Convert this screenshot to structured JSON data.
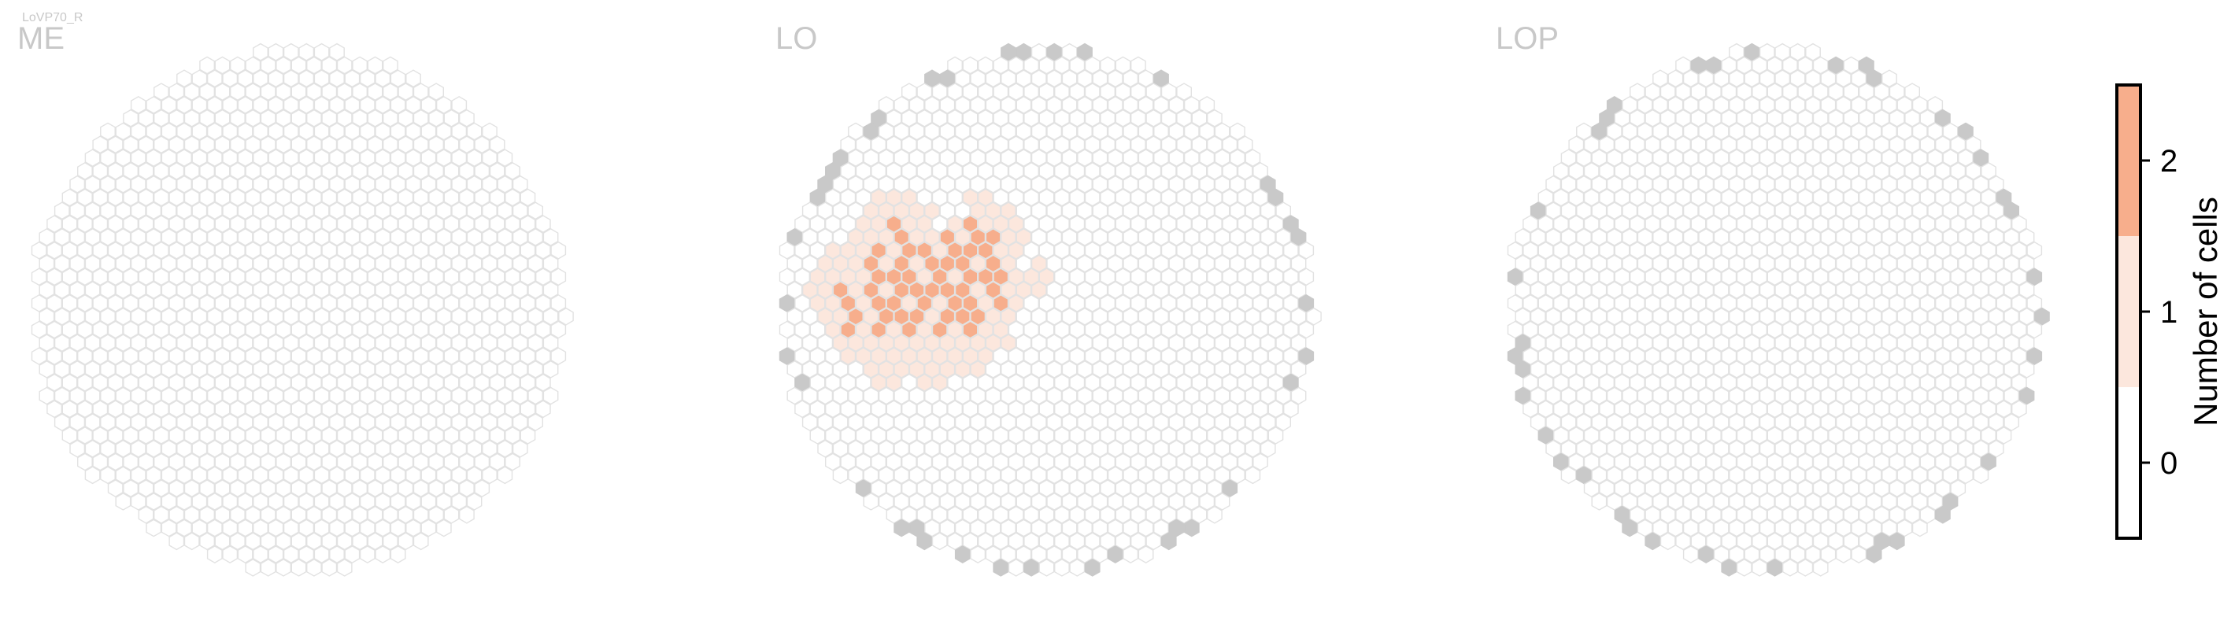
{
  "cell_type_label": "LoVP70_R",
  "chart_data": {
    "type": "heatmap",
    "description_kind": "hexagonal column maps of the right optic lobe",
    "panels": [
      {
        "title": "ME",
        "counts_by_row": []
      },
      {
        "title": "LO",
        "counts_by_row": [
          {
            "row": 6,
            "cols": [
              [
                6,
                1
              ],
              [
                7,
                1
              ],
              [
                8,
                1
              ],
              [
                12,
                1
              ],
              [
                13,
                1
              ]
            ]
          },
          {
            "row": 7,
            "cols": [
              [
                5,
                1
              ],
              [
                6,
                1
              ],
              [
                7,
                1
              ],
              [
                8,
                1
              ],
              [
                9,
                1
              ],
              [
                12,
                1
              ],
              [
                13,
                1
              ],
              [
                14,
                1
              ]
            ]
          },
          {
            "row": 8,
            "cols": [
              [
                5,
                1
              ],
              [
                6,
                1
              ],
              [
                7,
                2
              ],
              [
                8,
                1
              ],
              [
                9,
                1
              ],
              [
                11,
                1
              ],
              [
                12,
                2
              ],
              [
                13,
                1
              ],
              [
                14,
                1
              ],
              [
                15,
                1
              ]
            ]
          },
          {
            "row": 9,
            "cols": [
              [
                4,
                1
              ],
              [
                5,
                1
              ],
              [
                6,
                1
              ],
              [
                7,
                2
              ],
              [
                8,
                1
              ],
              [
                9,
                1
              ],
              [
                10,
                2
              ],
              [
                11,
                1
              ],
              [
                12,
                2
              ],
              [
                13,
                2
              ],
              [
                14,
                1
              ],
              [
                15,
                1
              ]
            ]
          },
          {
            "row": 10,
            "cols": [
              [
                3,
                1
              ],
              [
                4,
                1
              ],
              [
                5,
                1
              ],
              [
                6,
                2
              ],
              [
                7,
                1
              ],
              [
                8,
                2
              ],
              [
                9,
                2
              ],
              [
                10,
                1
              ],
              [
                11,
                2
              ],
              [
                12,
                2
              ],
              [
                13,
                2
              ],
              [
                14,
                1
              ],
              [
                15,
                1
              ]
            ]
          },
          {
            "row": 11,
            "cols": [
              [
                2,
                1
              ],
              [
                3,
                1
              ],
              [
                4,
                1
              ],
              [
                5,
                2
              ],
              [
                6,
                1
              ],
              [
                7,
                2
              ],
              [
                8,
                1
              ],
              [
                9,
                2
              ],
              [
                10,
                2
              ],
              [
                11,
                2
              ],
              [
                12,
                1
              ],
              [
                13,
                2
              ],
              [
                14,
                1
              ],
              [
                16,
                1
              ]
            ]
          },
          {
            "row": 12,
            "cols": [
              [
                2,
                1
              ],
              [
                3,
                1
              ],
              [
                4,
                1
              ],
              [
                5,
                1
              ],
              [
                6,
                2
              ],
              [
                7,
                2
              ],
              [
                8,
                2
              ],
              [
                9,
                1
              ],
              [
                10,
                2
              ],
              [
                11,
                1
              ],
              [
                12,
                2
              ],
              [
                13,
                2
              ],
              [
                14,
                2
              ],
              [
                15,
                1
              ],
              [
                16,
                1
              ],
              [
                17,
                1
              ]
            ]
          },
          {
            "row": 13,
            "cols": [
              [
                1,
                1
              ],
              [
                2,
                1
              ],
              [
                3,
                2
              ],
              [
                4,
                1
              ],
              [
                5,
                2
              ],
              [
                6,
                1
              ],
              [
                7,
                2
              ],
              [
                8,
                2
              ],
              [
                9,
                2
              ],
              [
                10,
                2
              ],
              [
                11,
                2
              ],
              [
                12,
                1
              ],
              [
                13,
                2
              ],
              [
                14,
                1
              ],
              [
                15,
                1
              ],
              [
                16,
                1
              ]
            ]
          },
          {
            "row": 14,
            "cols": [
              [
                2,
                1
              ],
              [
                3,
                1
              ],
              [
                4,
                2
              ],
              [
                5,
                1
              ],
              [
                6,
                2
              ],
              [
                7,
                2
              ],
              [
                8,
                1
              ],
              [
                9,
                2
              ],
              [
                10,
                1
              ],
              [
                11,
                2
              ],
              [
                12,
                2
              ],
              [
                13,
                1
              ],
              [
                14,
                2
              ],
              [
                15,
                1
              ]
            ]
          },
          {
            "row": 15,
            "cols": [
              [
                2,
                1
              ],
              [
                3,
                1
              ],
              [
                4,
                2
              ],
              [
                5,
                1
              ],
              [
                6,
                2
              ],
              [
                7,
                2
              ],
              [
                8,
                2
              ],
              [
                9,
                1
              ],
              [
                10,
                2
              ],
              [
                11,
                2
              ],
              [
                12,
                2
              ],
              [
                13,
                1
              ],
              [
                14,
                1
              ]
            ]
          },
          {
            "row": 16,
            "cols": [
              [
                3,
                1
              ],
              [
                4,
                2
              ],
              [
                5,
                1
              ],
              [
                6,
                2
              ],
              [
                7,
                1
              ],
              [
                8,
                2
              ],
              [
                9,
                1
              ],
              [
                10,
                2
              ],
              [
                11,
                1
              ],
              [
                12,
                2
              ],
              [
                13,
                1
              ],
              [
                14,
                1
              ]
            ]
          },
          {
            "row": 17,
            "cols": [
              [
                3,
                1
              ],
              [
                4,
                1
              ],
              [
                5,
                1
              ],
              [
                6,
                1
              ],
              [
                7,
                1
              ],
              [
                8,
                1
              ],
              [
                9,
                1
              ],
              [
                10,
                1
              ],
              [
                11,
                1
              ],
              [
                12,
                1
              ],
              [
                13,
                1
              ],
              [
                14,
                1
              ]
            ]
          },
          {
            "row": 18,
            "cols": [
              [
                4,
                1
              ],
              [
                5,
                1
              ],
              [
                6,
                1
              ],
              [
                7,
                1
              ],
              [
                8,
                1
              ],
              [
                9,
                1
              ],
              [
                10,
                1
              ],
              [
                11,
                1
              ],
              [
                12,
                1
              ],
              [
                13,
                1
              ]
            ]
          },
          {
            "row": 19,
            "cols": [
              [
                5,
                1
              ],
              [
                6,
                1
              ],
              [
                7,
                1
              ],
              [
                8,
                1
              ],
              [
                9,
                1
              ],
              [
                10,
                1
              ],
              [
                11,
                1
              ],
              [
                12,
                1
              ]
            ]
          },
          {
            "row": 20,
            "cols": [
              [
                6,
                1
              ],
              [
                7,
                1
              ],
              [
                9,
                1
              ],
              [
                10,
                1
              ]
            ]
          }
        ]
      },
      {
        "title": "LOP",
        "counts_by_row": []
      }
    ],
    "colorbar": {
      "label": "Number of cells",
      "ticks": [
        0,
        1,
        2
      ],
      "levels": [
        {
          "value": 0,
          "color": "#ffffff"
        },
        {
          "value": 1,
          "color": "#fce7dd"
        },
        {
          "value": 2,
          "color": "#f7ae8c"
        }
      ]
    },
    "colors": {
      "empty_hex_stroke": "#e2e2e2",
      "boundary_hex_fill": "#c9c9c9",
      "title_color": "#c8c8c8"
    }
  }
}
